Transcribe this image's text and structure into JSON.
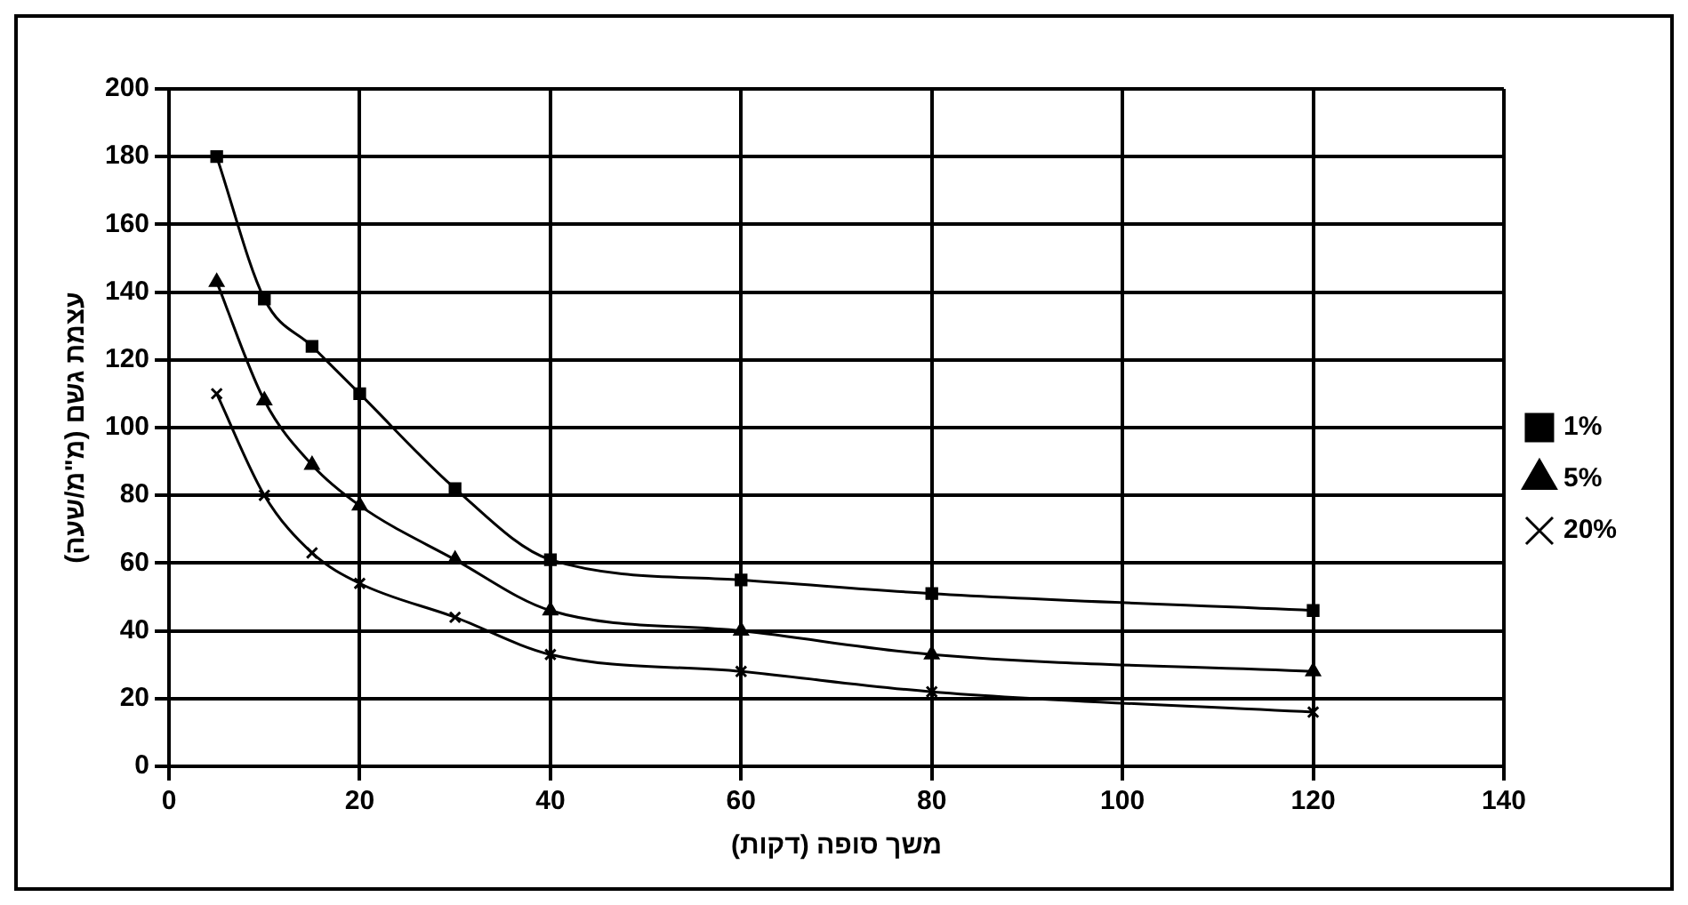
{
  "chart_data": {
    "type": "line",
    "xlabel": "משך סופה (דקות)",
    "ylabel": "עצמת גשם (מ\"מ/שעה)",
    "x": [
      5,
      10,
      15,
      20,
      30,
      40,
      60,
      80,
      120
    ],
    "series": [
      {
        "name": "1%",
        "color": "#000000",
        "marker": "square",
        "values": [
          180,
          138,
          124,
          110,
          82,
          61,
          55,
          51,
          46
        ]
      },
      {
        "name": "5%",
        "color": "#000000",
        "marker": "triangle",
        "values": [
          143,
          108,
          89,
          77,
          61,
          46,
          40,
          33,
          28
        ]
      },
      {
        "name": "20%",
        "color": "#000000",
        "marker": "cross",
        "values": [
          110,
          80,
          63,
          54,
          44,
          33,
          28,
          22,
          16
        ]
      }
    ],
    "xlim": [
      0,
      140
    ],
    "xticks": [
      0,
      20,
      40,
      60,
      80,
      100,
      120,
      140
    ],
    "ylim": [
      0,
      200
    ],
    "yticks": [
      0,
      20,
      40,
      60,
      80,
      100,
      120,
      140,
      160,
      180,
      200
    ],
    "grid": true,
    "legend": "right",
    "line_style": "solid"
  }
}
